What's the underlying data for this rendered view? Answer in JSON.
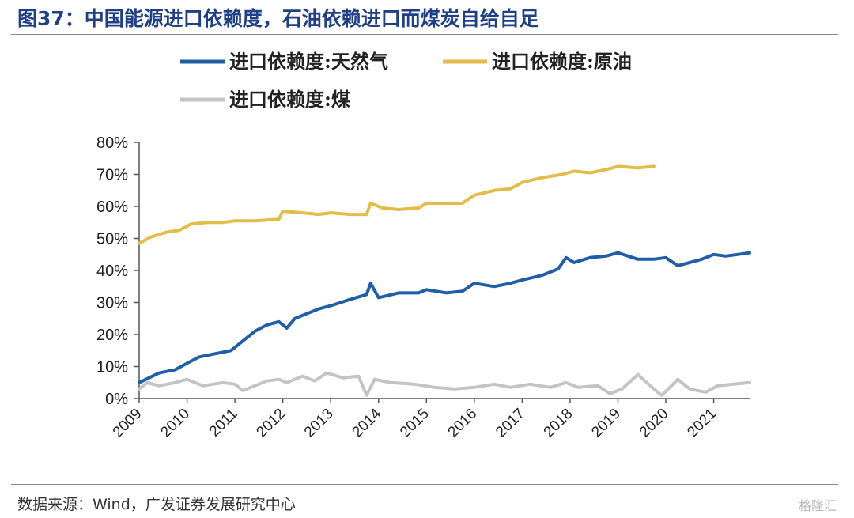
{
  "header": {
    "title": "图37：中国能源进口依赖度，石油依赖进口而煤炭自给自足"
  },
  "footer": {
    "source": "数据来源：Wind，广发证券发展研究中心",
    "watermark": "格隆汇"
  },
  "chart_data": {
    "type": "line",
    "title": "",
    "xlabel": "",
    "ylabel": "",
    "y_unit": "%",
    "ylim": [
      0,
      80
    ],
    "y_ticks": [
      "0%",
      "10%",
      "20%",
      "30%",
      "40%",
      "50%",
      "60%",
      "70%",
      "80%"
    ],
    "x_ticks": [
      "2009",
      "2010",
      "2011",
      "2012",
      "2013",
      "2014",
      "2015",
      "2016",
      "2017",
      "2018",
      "2019",
      "2020",
      "2021"
    ],
    "xlim": [
      "2009-01",
      "2021-10"
    ],
    "grid": false,
    "legend_position": "top",
    "series": [
      {
        "name": "进口依赖度:天然气",
        "color": "#1f5fa8",
        "points": [
          [
            "2009-01",
            5
          ],
          [
            "2009-06",
            8
          ],
          [
            "2009-10",
            9
          ],
          [
            "2010-01",
            11
          ],
          [
            "2010-04",
            13
          ],
          [
            "2010-08",
            14
          ],
          [
            "2010-12",
            15
          ],
          [
            "2011-03",
            18
          ],
          [
            "2011-06",
            21
          ],
          [
            "2011-09",
            23
          ],
          [
            "2011-12",
            24
          ],
          [
            "2012-02",
            22
          ],
          [
            "2012-04",
            25
          ],
          [
            "2012-07",
            26.5
          ],
          [
            "2012-10",
            28
          ],
          [
            "2013-01",
            29
          ],
          [
            "2013-06",
            31
          ],
          [
            "2013-10",
            32.5
          ],
          [
            "2013-11",
            36
          ],
          [
            "2014-01",
            31.5
          ],
          [
            "2014-06",
            33
          ],
          [
            "2014-11",
            33
          ],
          [
            "2015-01",
            34
          ],
          [
            "2015-06",
            33
          ],
          [
            "2015-10",
            33.5
          ],
          [
            "2016-01",
            36
          ],
          [
            "2016-06",
            35
          ],
          [
            "2016-10",
            36
          ],
          [
            "2017-01",
            37
          ],
          [
            "2017-06",
            38.5
          ],
          [
            "2017-10",
            40.5
          ],
          [
            "2017-12",
            44
          ],
          [
            "2018-02",
            42.5
          ],
          [
            "2018-06",
            44
          ],
          [
            "2018-10",
            44.5
          ],
          [
            "2019-01",
            45.5
          ],
          [
            "2019-06",
            43.5
          ],
          [
            "2019-10",
            43.5
          ],
          [
            "2020-01",
            44
          ],
          [
            "2020-04",
            41.5
          ],
          [
            "2020-07",
            42.5
          ],
          [
            "2020-10",
            43.5
          ],
          [
            "2021-01",
            45
          ],
          [
            "2021-04",
            44.5
          ],
          [
            "2021-07",
            45
          ],
          [
            "2021-10",
            45.5
          ]
        ]
      },
      {
        "name": "进口依赖度:原油",
        "color": "#e2bd4a",
        "points": [
          [
            "2009-01",
            48.5
          ],
          [
            "2009-04",
            50.5
          ],
          [
            "2009-08",
            52
          ],
          [
            "2009-11",
            52.5
          ],
          [
            "2010-02",
            54.5
          ],
          [
            "2010-06",
            55
          ],
          [
            "2010-10",
            55
          ],
          [
            "2011-01",
            55.5
          ],
          [
            "2011-06",
            55.5
          ],
          [
            "2011-12",
            56
          ],
          [
            "2012-01",
            58.5
          ],
          [
            "2012-06",
            58
          ],
          [
            "2012-10",
            57.5
          ],
          [
            "2013-01",
            58
          ],
          [
            "2013-06",
            57.5
          ],
          [
            "2013-10",
            57.5
          ],
          [
            "2013-11",
            61
          ],
          [
            "2014-02",
            59.5
          ],
          [
            "2014-06",
            59
          ],
          [
            "2014-11",
            59.5
          ],
          [
            "2015-01",
            61
          ],
          [
            "2015-06",
            61
          ],
          [
            "2015-10",
            61
          ],
          [
            "2016-01",
            63.5
          ],
          [
            "2016-06",
            65
          ],
          [
            "2016-10",
            65.5
          ],
          [
            "2017-01",
            67.5
          ],
          [
            "2017-06",
            69
          ],
          [
            "2017-11",
            70
          ],
          [
            "2018-02",
            71
          ],
          [
            "2018-06",
            70.5
          ],
          [
            "2018-10",
            71.5
          ],
          [
            "2019-01",
            72.5
          ],
          [
            "2019-06",
            72
          ],
          [
            "2019-10",
            72.5
          ]
        ]
      },
      {
        "name": "进口依赖度:煤",
        "color": "#c4c4c4",
        "points": [
          [
            "2009-01",
            3
          ],
          [
            "2009-03",
            5
          ],
          [
            "2009-06",
            4
          ],
          [
            "2009-10",
            5
          ],
          [
            "2010-01",
            6
          ],
          [
            "2010-05",
            4
          ],
          [
            "2010-10",
            5
          ],
          [
            "2011-01",
            4.5
          ],
          [
            "2011-03",
            2.5
          ],
          [
            "2011-06",
            4
          ],
          [
            "2011-09",
            5.5
          ],
          [
            "2011-12",
            6
          ],
          [
            "2012-02",
            5
          ],
          [
            "2012-06",
            7
          ],
          [
            "2012-09",
            5.5
          ],
          [
            "2012-12",
            8
          ],
          [
            "2013-04",
            6.5
          ],
          [
            "2013-08",
            7
          ],
          [
            "2013-10",
            1
          ],
          [
            "2013-12",
            6
          ],
          [
            "2014-04",
            5
          ],
          [
            "2014-10",
            4.5
          ],
          [
            "2015-03",
            3.5
          ],
          [
            "2015-08",
            3
          ],
          [
            "2016-01",
            3.5
          ],
          [
            "2016-06",
            4.5
          ],
          [
            "2016-10",
            3.5
          ],
          [
            "2017-03",
            4.5
          ],
          [
            "2017-08",
            3.5
          ],
          [
            "2017-12",
            5
          ],
          [
            "2018-03",
            3.5
          ],
          [
            "2018-08",
            4
          ],
          [
            "2018-11",
            1.5
          ],
          [
            "2019-02",
            3
          ],
          [
            "2019-06",
            7.5
          ],
          [
            "2019-10",
            3
          ],
          [
            "2019-12",
            1
          ],
          [
            "2020-04",
            6
          ],
          [
            "2020-07",
            3
          ],
          [
            "2020-11",
            2
          ],
          [
            "2021-02",
            4
          ],
          [
            "2021-06",
            4.5
          ],
          [
            "2021-10",
            5
          ]
        ]
      }
    ]
  }
}
